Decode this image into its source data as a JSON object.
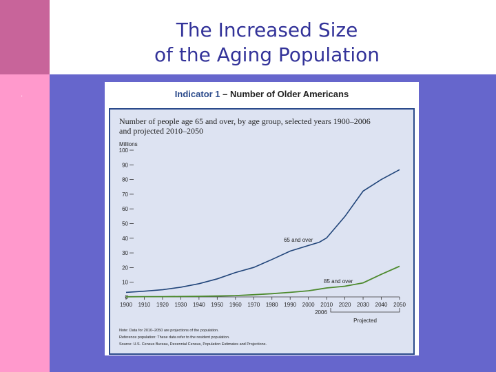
{
  "slide": {
    "title_line1": "The Increased Size",
    "title_line2": "of the Aging Population",
    "bullet": "."
  },
  "figure": {
    "indicator_label": "Indicator 1",
    "indicator_title": " – Number of Older Americans",
    "notes": [
      "Note: Data for 2010–2050 are projections of the population.",
      "Reference population: These data refer to the resident population.",
      "Source: U.S. Census Bureau, Decennial Census, Population Estimates and Projections."
    ],
    "extra_tick_label": "2006",
    "projected_label": "Projected"
  },
  "colors": {
    "panel_background": "#dde3f2",
    "panel_border": "#2b4a8b",
    "indicator_label": "#2b4a8b",
    "line_65": "#21457a",
    "line_85": "#4d8a2e"
  },
  "chart_data": {
    "type": "line",
    "title": "Number of people age 65 and over, by age group, selected years 1900–2006 and projected 2010–2050",
    "title_lines": [
      "Number of people age 65 and over, by age group, selected years 1900–2006",
      "and projected 2010–2050"
    ],
    "ylabel": "Millions",
    "xlabel": "",
    "ylim": [
      0,
      100
    ],
    "xlim": [
      1900,
      2050
    ],
    "x_ticks": [
      1900,
      1910,
      1920,
      1930,
      1940,
      1950,
      1960,
      1970,
      1980,
      1990,
      2000,
      2010,
      2020,
      2030,
      2040,
      2050
    ],
    "y_ticks": [
      0,
      10,
      20,
      30,
      40,
      50,
      60,
      70,
      80,
      90,
      100
    ],
    "grid": false,
    "series": [
      {
        "name": "65 and over",
        "x": [
          1900,
          1910,
          1920,
          1930,
          1940,
          1950,
          1960,
          1970,
          1980,
          1990,
          2000,
          2006,
          2010,
          2020,
          2030,
          2040,
          2050
        ],
        "values": [
          3.1,
          3.9,
          4.9,
          6.6,
          9.0,
          12.3,
          16.6,
          20.1,
          25.5,
          31.2,
          35.0,
          37.3,
          40.2,
          54.8,
          72.1,
          80.0,
          86.7
        ]
      },
      {
        "name": "85 and over",
        "x": [
          1900,
          1910,
          1920,
          1930,
          1940,
          1950,
          1960,
          1970,
          1980,
          1990,
          2000,
          2006,
          2010,
          2020,
          2030,
          2040,
          2050
        ],
        "values": [
          0.1,
          0.2,
          0.2,
          0.3,
          0.4,
          0.6,
          0.9,
          1.5,
          2.2,
          3.1,
          4.2,
          5.3,
          6.1,
          7.3,
          9.6,
          15.4,
          20.9
        ]
      }
    ]
  }
}
